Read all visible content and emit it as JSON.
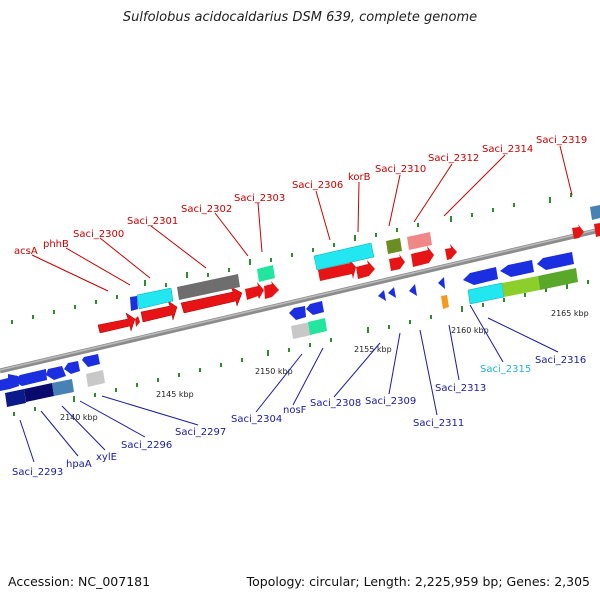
{
  "title": "Sulfolobus acidocaldarius DSM 639, complete genome",
  "footer": {
    "accession": "Accession: NC_007181",
    "summary": "Topology: circular; Length: 2,225,959 bp; Genes: 2,305"
  },
  "colors": {
    "top_strand_labels": "#cc0000",
    "bottom_strand_labels": "#1a1aa6",
    "highlight_label": "#22b5d8",
    "backbone": "#8c8c8c",
    "tick_marks": "#2e8b2e"
  },
  "scale_ticks": [
    {
      "label": "2140 kbp",
      "kbp": 2140
    },
    {
      "label": "2145 kbp",
      "kbp": 2145
    },
    {
      "label": "2150 kbp",
      "kbp": 2150
    },
    {
      "label": "2155 kbp",
      "kbp": 2155
    },
    {
      "label": "2160 kbp",
      "kbp": 2160
    },
    {
      "label": "2165 kbp",
      "kbp": 2165
    }
  ],
  "top_labels": [
    "acsA",
    "phhB",
    "Saci_2300",
    "Saci_2301",
    "Saci_2302",
    "Saci_2303",
    "Saci_2306",
    "korB",
    "Saci_2310",
    "Saci_2312",
    "Saci_2314",
    "Saci_2319"
  ],
  "bottom_labels": [
    "Saci_2293",
    "hpaA",
    "xylE",
    "Saci_2296",
    "Saci_2297",
    "Saci_2304",
    "nosF",
    "Saci_2308",
    "Saci_2309",
    "Saci_2311",
    "Saci_2313",
    "Saci_2315",
    "Saci_2316"
  ]
}
